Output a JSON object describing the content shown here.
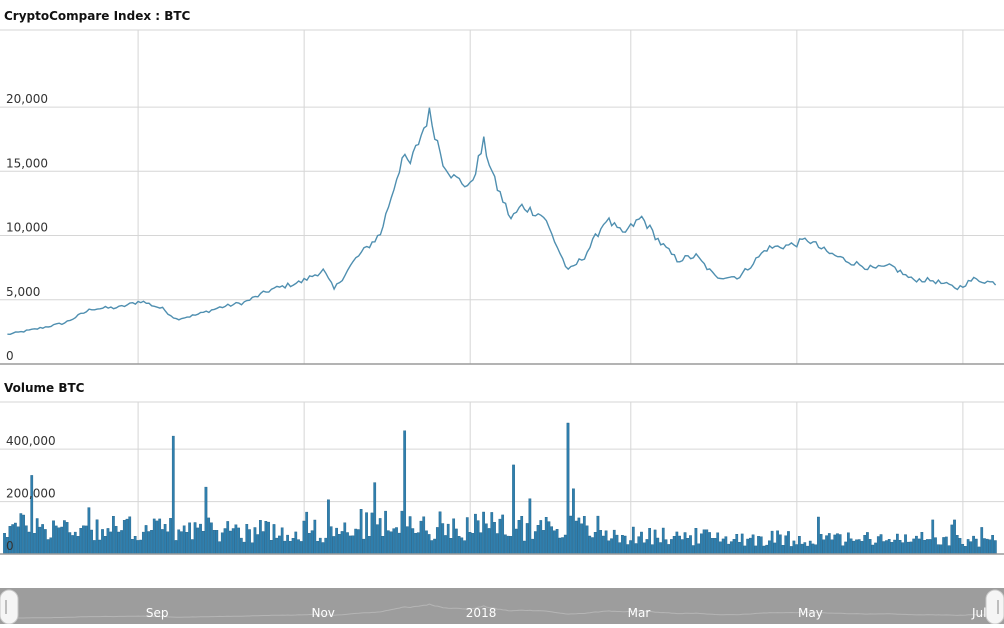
{
  "chart_data": [
    {
      "type": "line",
      "title": "CryptoCompare Index : BTC",
      "yticks": [
        "0",
        "5,000",
        "10,000",
        "15,000",
        "20,000"
      ],
      "ylim": [
        0,
        26000
      ],
      "grid": true,
      "color": "#4f8fb0",
      "x": [
        "2017-07-15",
        "2017-07-25",
        "2017-08-05",
        "2017-08-15",
        "2017-08-25",
        "2017-09-02",
        "2017-09-10",
        "2017-09-15",
        "2017-09-22",
        "2017-10-01",
        "2017-10-10",
        "2017-10-20",
        "2017-10-31",
        "2017-11-08",
        "2017-11-12",
        "2017-11-20",
        "2017-11-29",
        "2017-12-07",
        "2017-12-10",
        "2017-12-17",
        "2017-12-22",
        "2017-12-26",
        "2018-01-01",
        "2018-01-06",
        "2018-01-10",
        "2018-01-16",
        "2018-01-20",
        "2018-01-28",
        "2018-02-06",
        "2018-02-12",
        "2018-02-20",
        "2018-02-26",
        "2018-03-05",
        "2018-03-12",
        "2018-03-18",
        "2018-03-25",
        "2018-04-01",
        "2018-04-10",
        "2018-04-20",
        "2018-04-30",
        "2018-05-05",
        "2018-05-12",
        "2018-05-20",
        "2018-05-29",
        "2018-06-05",
        "2018-06-12",
        "2018-06-20",
        "2018-06-29",
        "2018-07-05",
        "2018-07-13"
      ],
      "y": [
        2300,
        2700,
        3200,
        4300,
        4400,
        4900,
        4300,
        3500,
        3800,
        4400,
        4800,
        5800,
        6400,
        7300,
        5800,
        8200,
        10100,
        16000,
        15600,
        19500,
        15800,
        14500,
        13800,
        17200,
        14200,
        11300,
        12300,
        11500,
        7200,
        8400,
        11300,
        10100,
        11400,
        9400,
        8100,
        8400,
        6800,
        6800,
        9000,
        9300,
        9700,
        8700,
        8000,
        7400,
        7600,
        6600,
        6500,
        5900,
        6600,
        6300
      ]
    },
    {
      "type": "bar",
      "title": "Volume BTC",
      "yticks": [
        "0",
        "200,000",
        "400,000"
      ],
      "ylim": [
        0,
        580000
      ],
      "grid": true,
      "color": "#2f7fae",
      "peaks": [
        {
          "date": "2017-07-24",
          "value": 300000
        },
        {
          "date": "2017-09-14",
          "value": 450000
        },
        {
          "date": "2017-12-08",
          "value": 470000
        },
        {
          "date": "2018-01-17",
          "value": 340000
        },
        {
          "date": "2018-02-06",
          "value": 500000
        }
      ]
    }
  ],
  "navigator": {
    "labels": [
      "Sep",
      "Nov",
      "2018",
      "Mar",
      "May",
      "Jul"
    ]
  }
}
